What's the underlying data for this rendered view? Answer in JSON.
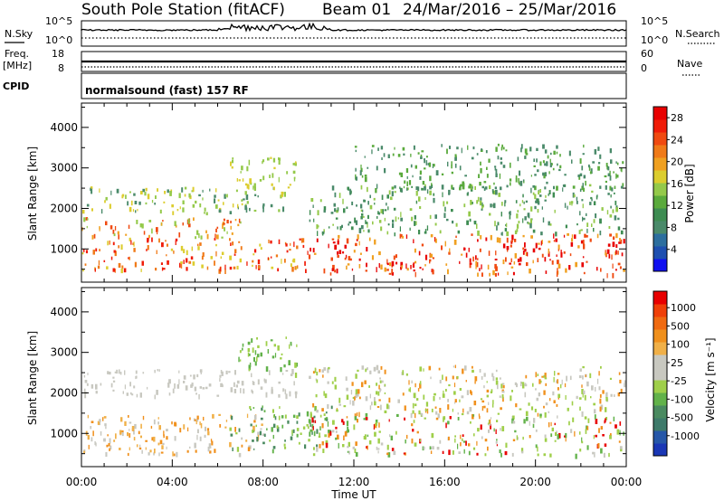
{
  "chart_data": {
    "type": "heatmap",
    "title": {
      "station": "South Pole Station (fitACF)",
      "beam": "Beam 01",
      "dates": "24/Mar/2016 – 25/Mar/2016"
    },
    "header": {
      "nsky_label": "N.Sky",
      "nsky_ticks": [
        "10^5",
        "10^0"
      ],
      "nsearch_label": "N.Search",
      "nsearch_ticks": [
        "10^5",
        "10^0"
      ],
      "freq_label": "Freq.",
      "freq_unit": "[MHz]",
      "freq_ticks": [
        "18",
        "8"
      ],
      "nave_label": "Nave",
      "nave_ticks": [
        "60",
        "0"
      ],
      "cpid_label": "CPID",
      "cpid_text": "normalsound (fast) 157 RF"
    },
    "xlabel": "Time UT",
    "x_ticks": [
      "00:00",
      "04:00",
      "08:00",
      "12:00",
      "16:00",
      "20:00",
      "00:00"
    ],
    "xlim_hours": [
      0,
      24
    ],
    "ylabel": "Slant Range [km]",
    "y_ticks": [
      "1000",
      "2000",
      "3000",
      "4000"
    ],
    "ylim_km": [
      180,
      4600
    ],
    "panels": [
      {
        "name": "Power",
        "colorbar_label": "Power [dB]",
        "colorbar_ticks": [
          "4",
          "8",
          "12",
          "16",
          "20",
          "24",
          "28"
        ],
        "colorbar_colors": [
          "#1010f0",
          "#1e4fb0",
          "#2c6e9e",
          "#4a8a6a",
          "#3e8c52",
          "#5aaa3c",
          "#94c94a",
          "#dccd2e",
          "#f0a020",
          "#f07a18",
          "#f04a10",
          "#f01c08",
          "#e80000"
        ],
        "scale": [
          0,
          30
        ],
        "regions": [
          {
            "t0": 0,
            "t1": 9,
            "r0": 1900,
            "r1": 2550,
            "vals": [
              8,
              14,
              18
            ]
          },
          {
            "t0": 0,
            "t1": 7,
            "r0": 1300,
            "r1": 1800,
            "vals": [
              16,
              20,
              24
            ]
          },
          {
            "t0": 0,
            "t1": 10,
            "r0": 500,
            "r1": 1300,
            "vals": [
              18,
              22,
              26
            ]
          },
          {
            "t0": 6.5,
            "t1": 9.5,
            "r0": 2500,
            "r1": 3300,
            "vals": [
              14,
              16,
              18
            ]
          },
          {
            "t0": 10,
            "t1": 24,
            "r0": 400,
            "r1": 1400,
            "vals": [
              20,
              24,
              28
            ]
          },
          {
            "t0": 10,
            "t1": 24,
            "r0": 1400,
            "r1": 2600,
            "vals": [
              8,
              10,
              14
            ]
          },
          {
            "t0": 12,
            "t1": 24,
            "r0": 2500,
            "r1": 3600,
            "vals": [
              8,
              12
            ]
          }
        ]
      },
      {
        "name": "Velocity",
        "colorbar_label": "Velocity [m s⁻¹]",
        "colorbar_ticks": [
          "1000",
          "500",
          "100",
          "25",
          "-25",
          "-100",
          "-500",
          "-1000"
        ],
        "colorbar_colors": [
          "#1a37b5",
          "#2657a8",
          "#3e7a6a",
          "#4a8a60",
          "#62b24a",
          "#9fcf4a",
          "#c8c8c0",
          "#c8c8c0",
          "#f0b048",
          "#f0901c",
          "#f06a10",
          "#f04008",
          "#e80000"
        ],
        "scale": [
          -1000,
          1000
        ],
        "regions": [
          {
            "t0": 0,
            "t1": 9.5,
            "r0": 1950,
            "r1": 2600,
            "vals": [
              25,
              -25
            ]
          },
          {
            "t0": 0,
            "t1": 8,
            "r0": 500,
            "r1": 1500,
            "vals": [
              100,
              300,
              500
            ]
          },
          {
            "t0": 6.5,
            "t1": 11,
            "r0": 600,
            "r1": 1700,
            "vals": [
              -100,
              -300,
              -500
            ]
          },
          {
            "t0": 6.8,
            "t1": 9.5,
            "r0": 2500,
            "r1": 3400,
            "vals": [
              -100,
              -300
            ]
          },
          {
            "t0": 10,
            "t1": 24,
            "r0": 500,
            "r1": 1500,
            "vals": [
              -300,
              -100,
              100,
              500,
              1000
            ]
          },
          {
            "t0": 10,
            "t1": 24,
            "r0": 1500,
            "r1": 2700,
            "vals": [
              -100,
              100,
              500
            ]
          }
        ]
      }
    ]
  }
}
